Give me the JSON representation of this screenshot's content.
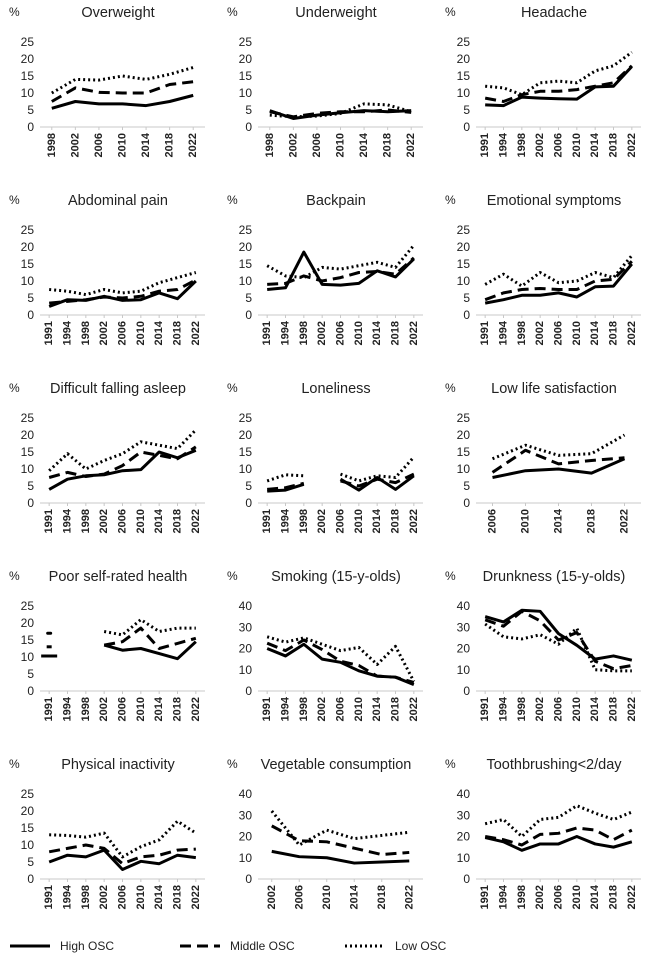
{
  "colors": {
    "line": "#000000",
    "axis": "#c8c8c8",
    "text": "#222222",
    "background": "#ffffff"
  },
  "legend": {
    "items": [
      {
        "name": "High OSC",
        "style": "solid"
      },
      {
        "name": "Middle OSC",
        "style": "dashed"
      },
      {
        "name": "Low OSC",
        "style": "dotted"
      }
    ]
  },
  "chart_data": [
    {
      "type": "line",
      "title": "Overweight",
      "ylabel": "%",
      "ylim": [
        0,
        25
      ],
      "yticks": [
        0,
        5,
        10,
        15,
        20,
        25
      ],
      "categories": [
        "1998",
        "2002",
        "2006",
        "2010",
        "2014",
        "2018",
        "2022"
      ],
      "series": [
        {
          "name": "High OSC",
          "values": [
            5.5,
            7.5,
            6.8,
            6.8,
            6.3,
            7.5,
            9.3
          ]
        },
        {
          "name": "Middle OSC",
          "values": [
            7.5,
            11.5,
            10.2,
            10.0,
            10.0,
            12.5,
            13.3
          ]
        },
        {
          "name": "Low OSC",
          "values": [
            10.0,
            14.0,
            13.8,
            15.0,
            14.0,
            15.5,
            17.5
          ]
        }
      ]
    },
    {
      "type": "line",
      "title": "Underweight",
      "ylabel": "%",
      "ylim": [
        0,
        25
      ],
      "yticks": [
        0,
        5,
        10,
        15,
        20,
        25
      ],
      "categories": [
        "1998",
        "2002",
        "2006",
        "2010",
        "2014",
        "2018",
        "2022"
      ],
      "series": [
        {
          "name": "High OSC",
          "values": [
            4.8,
            2.5,
            3.5,
            4.2,
            4.8,
            4.5,
            4.8
          ]
        },
        {
          "name": "Middle OSC",
          "values": [
            4.5,
            3.0,
            4.0,
            4.5,
            4.5,
            5.0,
            4.3
          ]
        },
        {
          "name": "Low OSC",
          "values": [
            3.5,
            3.0,
            3.2,
            4.0,
            6.8,
            6.5,
            4.5
          ]
        }
      ]
    },
    {
      "type": "line",
      "title": "Headache",
      "ylabel": "%",
      "ylim": [
        0,
        25
      ],
      "yticks": [
        0,
        5,
        10,
        15,
        20,
        25
      ],
      "categories": [
        "1991",
        "1994",
        "1998",
        "2002",
        "2006",
        "2010",
        "2014",
        "2018",
        "2022"
      ],
      "series": [
        {
          "name": "High OSC",
          "values": [
            6.5,
            6.3,
            8.8,
            8.5,
            8.3,
            8.2,
            11.8,
            12.0,
            17.8
          ]
        },
        {
          "name": "Middle OSC",
          "values": [
            8.5,
            7.5,
            9.5,
            10.5,
            10.5,
            11.0,
            12.0,
            13.0,
            18.0
          ]
        },
        {
          "name": "Low OSC",
          "values": [
            12.0,
            11.5,
            9.5,
            13.0,
            13.5,
            13.0,
            16.5,
            18.0,
            22.0
          ]
        }
      ]
    },
    {
      "type": "line",
      "title": "Abdominal pain",
      "ylabel": "%",
      "ylim": [
        0,
        25
      ],
      "yticks": [
        0,
        5,
        10,
        15,
        20,
        25
      ],
      "categories": [
        "1991",
        "1994",
        "1998",
        "2002",
        "2006",
        "2010",
        "2014",
        "2018",
        "2022"
      ],
      "series": [
        {
          "name": "High OSC",
          "values": [
            2.5,
            4.5,
            4.3,
            5.5,
            4.3,
            4.5,
            6.5,
            4.8,
            10.0
          ]
        },
        {
          "name": "Middle OSC",
          "values": [
            3.5,
            4.0,
            4.5,
            5.3,
            5.0,
            5.5,
            7.0,
            7.5,
            10.3
          ]
        },
        {
          "name": "Low OSC",
          "values": [
            7.5,
            7.0,
            6.0,
            7.5,
            6.5,
            7.0,
            9.5,
            11.0,
            12.5
          ]
        }
      ]
    },
    {
      "type": "line",
      "title": "Backpain",
      "ylabel": "%",
      "ylim": [
        0,
        25
      ],
      "yticks": [
        0,
        5,
        10,
        15,
        20,
        25
      ],
      "categories": [
        "1991",
        "1994",
        "1998",
        "2002",
        "2006",
        "2010",
        "2014",
        "2018",
        "2022"
      ],
      "series": [
        {
          "name": "High OSC",
          "values": [
            7.5,
            8.0,
            18.5,
            9.0,
            8.8,
            9.3,
            13.0,
            11.2,
            16.5
          ]
        },
        {
          "name": "Middle OSC",
          "values": [
            9.0,
            9.3,
            11.5,
            10.0,
            11.0,
            12.5,
            12.8,
            12.0,
            16.8
          ]
        },
        {
          "name": "Low OSC",
          "values": [
            14.5,
            11.5,
            11.0,
            14.0,
            13.5,
            14.5,
            15.5,
            14.0,
            20.5
          ]
        }
      ]
    },
    {
      "type": "line",
      "title": "Emotional symptoms",
      "ylabel": "%",
      "ylim": [
        0,
        25
      ],
      "yticks": [
        0,
        5,
        10,
        15,
        20,
        25
      ],
      "categories": [
        "1991",
        "1994",
        "1998",
        "2002",
        "2006",
        "2010",
        "2014",
        "2018",
        "2022"
      ],
      "series": [
        {
          "name": "High OSC",
          "values": [
            3.5,
            4.5,
            5.8,
            5.8,
            6.5,
            5.3,
            8.3,
            8.5,
            15.0
          ]
        },
        {
          "name": "Middle OSC",
          "values": [
            4.5,
            6.5,
            7.5,
            7.8,
            7.5,
            7.5,
            10.0,
            10.5,
            15.8
          ]
        },
        {
          "name": "Low OSC",
          "values": [
            9.0,
            12.0,
            8.5,
            12.5,
            9.5,
            10.0,
            12.5,
            11.0,
            17.5
          ]
        }
      ]
    },
    {
      "type": "line",
      "title": "Difficult falling asleep",
      "ylabel": "%",
      "ylim": [
        0,
        25
      ],
      "yticks": [
        0,
        5,
        10,
        15,
        20,
        25
      ],
      "categories": [
        "1991",
        "1994",
        "1998",
        "2002",
        "2006",
        "2010",
        "2014",
        "2018",
        "2022"
      ],
      "series": [
        {
          "name": "High OSC",
          "values": [
            4.0,
            7.0,
            8.0,
            8.3,
            9.5,
            9.8,
            15.0,
            13.3,
            15.5
          ]
        },
        {
          "name": "Middle OSC",
          "values": [
            7.5,
            9.0,
            7.8,
            8.5,
            11.0,
            15.0,
            14.0,
            13.0,
            16.5
          ]
        },
        {
          "name": "Low OSC",
          "values": [
            9.5,
            14.5,
            10.0,
            12.5,
            14.5,
            18.0,
            17.0,
            16.0,
            21.5
          ]
        }
      ]
    },
    {
      "type": "line",
      "title": "Loneliness",
      "ylabel": "%",
      "ylim": [
        0,
        25
      ],
      "yticks": [
        0,
        5,
        10,
        15,
        20,
        25
      ],
      "categories": [
        "1991",
        "1994",
        "1998",
        "2002",
        "2006",
        "2010",
        "2014",
        "2018",
        "2022"
      ],
      "series": [
        {
          "name": "High OSC",
          "values": [
            3.5,
            3.8,
            5.5,
            null,
            7.0,
            3.8,
            7.5,
            4.0,
            8.0
          ]
        },
        {
          "name": "Middle OSC",
          "values": [
            4.0,
            4.5,
            5.8,
            null,
            6.5,
            5.0,
            7.0,
            6.0,
            8.5
          ]
        },
        {
          "name": "Low OSC",
          "values": [
            6.5,
            8.3,
            8.0,
            null,
            8.5,
            6.5,
            8.0,
            7.5,
            13.5
          ]
        }
      ]
    },
    {
      "type": "line",
      "title": "Low life satisfaction",
      "ylabel": "%",
      "ylim": [
        0,
        25
      ],
      "yticks": [
        0,
        5,
        10,
        15,
        20,
        25
      ],
      "categories": [
        "2006",
        "2010",
        "2014",
        "2018",
        "2022"
      ],
      "series": [
        {
          "name": "High OSC",
          "values": [
            7.5,
            9.5,
            10.0,
            8.8,
            13.0
          ]
        },
        {
          "name": "Middle OSC",
          "values": [
            9.0,
            15.5,
            11.5,
            12.5,
            13.3
          ]
        },
        {
          "name": "Low OSC",
          "values": [
            13.0,
            17.0,
            14.0,
            14.5,
            20.0
          ]
        }
      ]
    },
    {
      "type": "line",
      "title": "Poor self-rated health",
      "ylabel": "%",
      "ylim": [
        0,
        25
      ],
      "yticks": [
        0,
        5,
        10,
        15,
        20,
        25
      ],
      "categories": [
        "1991",
        "1994",
        "1998",
        "2002",
        "2006",
        "2010",
        "2014",
        "2018",
        "2022"
      ],
      "series": [
        {
          "name": "High OSC",
          "values": [
            10.3,
            null,
            null,
            13.5,
            12.0,
            12.5,
            11.0,
            9.5,
            14.5
          ]
        },
        {
          "name": "Middle OSC",
          "values": [
            13.0,
            null,
            null,
            13.5,
            14.5,
            18.5,
            12.5,
            14.0,
            15.5
          ]
        },
        {
          "name": "Low OSC",
          "values": [
            17.0,
            null,
            null,
            17.5,
            16.5,
            21.0,
            17.5,
            18.5,
            18.5
          ]
        }
      ]
    },
    {
      "type": "line",
      "title": "Smoking (15-y-olds)",
      "ylabel": "%",
      "ylim": [
        0,
        40
      ],
      "yticks": [
        0,
        10,
        20,
        30,
        40
      ],
      "categories": [
        "1991",
        "1994",
        "1998",
        "2002",
        "2006",
        "2010",
        "2014",
        "2018",
        "2022"
      ],
      "series": [
        {
          "name": "High OSC",
          "values": [
            20.0,
            16.5,
            22.0,
            15.0,
            13.5,
            9.5,
            7.0,
            6.5,
            3.0
          ]
        },
        {
          "name": "Middle OSC",
          "values": [
            22.5,
            19.0,
            24.0,
            19.5,
            14.0,
            12.0,
            7.0,
            6.5,
            4.0
          ]
        },
        {
          "name": "Low OSC",
          "values": [
            25.5,
            23.0,
            25.0,
            22.0,
            19.0,
            20.5,
            12.5,
            21.0,
            4.5
          ]
        }
      ]
    },
    {
      "type": "line",
      "title": "Drunkness (15-y-olds)",
      "ylabel": "%",
      "ylim": [
        0,
        40
      ],
      "yticks": [
        0,
        10,
        20,
        30,
        40
      ],
      "categories": [
        "1991",
        "1994",
        "1998",
        "2002",
        "2006",
        "2010",
        "2014",
        "2018",
        "2022"
      ],
      "series": [
        {
          "name": "High OSC",
          "values": [
            35.0,
            32.5,
            38.0,
            37.5,
            27.0,
            21.5,
            15.0,
            16.5,
            14.5
          ]
        },
        {
          "name": "Middle OSC",
          "values": [
            33.5,
            30.5,
            37.5,
            33.0,
            24.0,
            27.5,
            14.0,
            10.5,
            12.0
          ]
        },
        {
          "name": "Low OSC",
          "values": [
            31.5,
            25.5,
            24.5,
            26.5,
            22.0,
            29.5,
            10.0,
            9.5,
            9.5
          ]
        }
      ]
    },
    {
      "type": "line",
      "title": "Physical inactivity",
      "ylabel": "%",
      "ylim": [
        0,
        25
      ],
      "yticks": [
        0,
        5,
        10,
        15,
        20,
        25
      ],
      "categories": [
        "1991",
        "1994",
        "1998",
        "2002",
        "2006",
        "2010",
        "2014",
        "2018",
        "2022"
      ],
      "series": [
        {
          "name": "High OSC",
          "values": [
            5.0,
            7.0,
            6.5,
            8.5,
            2.8,
            5.2,
            4.5,
            7.0,
            6.3
          ]
        },
        {
          "name": "Middle OSC",
          "values": [
            8.0,
            9.0,
            10.0,
            9.0,
            4.5,
            6.5,
            7.0,
            8.5,
            8.8
          ]
        },
        {
          "name": "Low OSC",
          "values": [
            13.0,
            12.8,
            12.3,
            13.5,
            6.5,
            9.5,
            11.5,
            17.0,
            13.5
          ]
        }
      ]
    },
    {
      "type": "line",
      "title": "Vegetable consumption",
      "ylabel": "%",
      "ylim": [
        0,
        40
      ],
      "yticks": [
        0,
        10,
        20,
        30,
        40
      ],
      "categories": [
        "2002",
        "2006",
        "2010",
        "2014",
        "2018",
        "2022"
      ],
      "series": [
        {
          "name": "High OSC",
          "values": [
            13.0,
            10.5,
            10.0,
            7.5,
            8.0,
            8.5
          ]
        },
        {
          "name": "Middle OSC",
          "values": [
            25.0,
            18.0,
            17.5,
            14.5,
            11.5,
            12.5
          ]
        },
        {
          "name": "Low OSC",
          "values": [
            32.0,
            16.0,
            23.0,
            19.0,
            20.5,
            22.0
          ]
        }
      ]
    },
    {
      "type": "line",
      "title": "Toothbrushing<2/day",
      "ylabel": "%",
      "ylim": [
        0,
        40
      ],
      "yticks": [
        0,
        10,
        20,
        30,
        40
      ],
      "categories": [
        "1991",
        "1994",
        "1998",
        "2002",
        "2006",
        "2010",
        "2014",
        "2018",
        "2022"
      ],
      "series": [
        {
          "name": "High OSC",
          "values": [
            19.5,
            17.5,
            13.5,
            16.5,
            16.5,
            20.0,
            16.5,
            15.0,
            17.5
          ]
        },
        {
          "name": "Middle OSC",
          "values": [
            20.0,
            18.5,
            16.0,
            21.0,
            21.5,
            24.0,
            23.0,
            18.5,
            23.0
          ]
        },
        {
          "name": "Low OSC",
          "values": [
            26.0,
            28.0,
            20.0,
            28.0,
            29.0,
            34.5,
            31.0,
            28.0,
            31.5
          ]
        }
      ]
    }
  ]
}
